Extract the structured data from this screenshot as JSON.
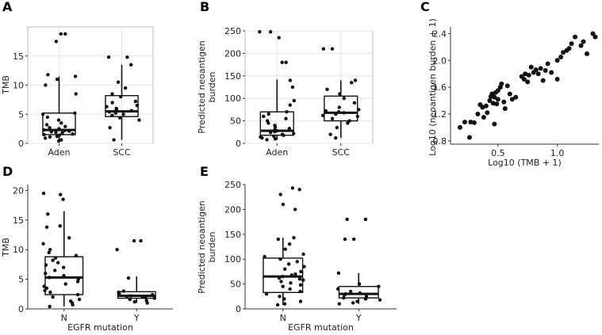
{
  "chart_data": [
    {
      "panel": "A",
      "type": "box",
      "categories": [
        "Aden",
        "SCC"
      ],
      "ylabel": "TMB",
      "xlabel": "",
      "ylim": [
        0,
        20
      ],
      "yticks": [
        0,
        5,
        10,
        15
      ],
      "grid": true,
      "boxes": [
        {
          "q1": 1.5,
          "median": 2.3,
          "q3": 5.2,
          "whisker_low": 0.2,
          "whisker_high": 11.5
        },
        {
          "q1": 4.6,
          "median": 5.5,
          "q3": 8.2,
          "whisker_low": 0.6,
          "whisker_high": 13.5
        }
      ],
      "points": [
        [
          0.4,
          0.6,
          0.9,
          1.1,
          1.2,
          1.4,
          1.5,
          1.6,
          1.8,
          1.9,
          2.0,
          2.1,
          2.2,
          2.3,
          2.5,
          2.7,
          2.9,
          3.2,
          3.5,
          4.0,
          4.5,
          5.0,
          5.2,
          8.5,
          10.0,
          11.0,
          11.5,
          11.8,
          17.5,
          18.8,
          18.8
        ],
        [
          0.6,
          2.7,
          4.0,
          4.4,
          4.8,
          5.0,
          5.2,
          5.4,
          5.6,
          5.8,
          6.0,
          6.3,
          6.5,
          7.0,
          7.2,
          8.0,
          8.5,
          9.5,
          10.5,
          13.5,
          14.8,
          14.8
        ]
      ]
    },
    {
      "panel": "B",
      "type": "box",
      "categories": [
        "Aden",
        "SCC"
      ],
      "ylabel": "Predicted neoantigen burden",
      "ylabel_lines": [
        "Predicted neoantigen",
        "burden"
      ],
      "xlabel": "",
      "ylim": [
        0,
        250
      ],
      "yticks": [
        0,
        50,
        100,
        150,
        200,
        250
      ],
      "grid": true,
      "boxes": [
        {
          "q1": 18,
          "median": 28,
          "q3": 70,
          "whisker_low": 8,
          "whisker_high": 142
        },
        {
          "q1": 50,
          "median": 68,
          "q3": 105,
          "whisker_low": 12,
          "whisker_high": 140
        }
      ],
      "points": [
        [
          8,
          10,
          12,
          14,
          16,
          18,
          20,
          22,
          24,
          26,
          28,
          30,
          33,
          36,
          40,
          45,
          50,
          55,
          60,
          65,
          70,
          85,
          95,
          125,
          140,
          180,
          180,
          235,
          248,
          248
        ],
        [
          12,
          20,
          35,
          45,
          50,
          55,
          60,
          62,
          65,
          68,
          70,
          72,
          75,
          80,
          90,
          100,
          110,
          120,
          135,
          140,
          210,
          210
        ]
      ]
    },
    {
      "panel": "C",
      "type": "scatter",
      "xlabel": "Log10 (TMB + 1)",
      "ylabel": "Log10 (neoantigen burden + 1)",
      "xlim": [
        0.1,
        1.35
      ],
      "ylim": [
        0.75,
        2.5
      ],
      "xticks": [
        0.5,
        1.0
      ],
      "yticks": [
        0.8,
        1.2,
        1.6,
        2.0,
        2.4
      ],
      "x": [
        0.18,
        0.22,
        0.26,
        0.3,
        0.33,
        0.35,
        0.37,
        0.38,
        0.4,
        0.41,
        0.43,
        0.44,
        0.45,
        0.46,
        0.47,
        0.48,
        0.49,
        0.5,
        0.5,
        0.52,
        0.53,
        0.55,
        0.58,
        0.6,
        0.62,
        0.65,
        0.7,
        0.72,
        0.73,
        0.75,
        0.76,
        0.78,
        0.8,
        0.82,
        0.84,
        0.86,
        0.88,
        0.9,
        0.92,
        0.95,
        1.0,
        1.0,
        1.03,
        1.05,
        1.08,
        1.1,
        1.12,
        1.15,
        1.2,
        1.22,
        1.25,
        1.3,
        1.32,
        0.27,
        0.47,
        0.56
      ],
      "y": [
        1.0,
        1.08,
        0.85,
        1.07,
        1.2,
        1.34,
        1.3,
        1.15,
        1.32,
        1.22,
        1.4,
        1.46,
        1.5,
        1.36,
        1.45,
        1.52,
        1.35,
        1.55,
        1.42,
        1.6,
        1.65,
        1.38,
        1.62,
        1.5,
        1.42,
        1.45,
        1.76,
        1.72,
        1.8,
        1.68,
        1.78,
        1.9,
        1.82,
        1.86,
        1.8,
        1.88,
        1.7,
        1.85,
        1.95,
        1.82,
        2.0,
        1.72,
        2.05,
        2.12,
        2.15,
        2.18,
        2.25,
        2.35,
        2.22,
        2.28,
        2.1,
        2.4,
        2.35,
        1.08,
        1.05,
        1.28
      ]
    },
    {
      "panel": "D",
      "type": "box",
      "categories": [
        "N",
        "Y"
      ],
      "xlabel": "EGFR mutation",
      "ylabel": "TMB",
      "ylim": [
        0,
        21
      ],
      "yticks": [
        0,
        5,
        10,
        15,
        20
      ],
      "grid": false,
      "boxes": [
        {
          "q1": 2.4,
          "median": 5.3,
          "q3": 8.8,
          "whisker_low": 0.4,
          "whisker_high": 16.5
        },
        {
          "q1": 1.8,
          "median": 2.2,
          "q3": 2.9,
          "whisker_low": 1.0,
          "whisker_high": 5.5
        }
      ],
      "points": [
        [
          0.4,
          0.7,
          1.0,
          1.3,
          1.6,
          2.0,
          2.4,
          2.8,
          3.1,
          3.5,
          3.8,
          4.2,
          4.6,
          5.0,
          5.3,
          5.6,
          6.0,
          6.5,
          7.0,
          7.4,
          7.8,
          8.2,
          8.6,
          9.0,
          9.5,
          10.0,
          11.0,
          12.0,
          13.8,
          14.0,
          16.0,
          18.5,
          19.3,
          19.5
        ],
        [
          1.0,
          1.2,
          1.4,
          1.6,
          1.8,
          1.9,
          2.0,
          2.1,
          2.2,
          2.3,
          2.4,
          2.6,
          2.8,
          3.0,
          5.2,
          10.0,
          11.5,
          11.5
        ]
      ]
    },
    {
      "panel": "E",
      "type": "box",
      "categories": [
        "N",
        "Y"
      ],
      "xlabel": "EGFR mutation",
      "ylabel": "Predicted neoantigen burden",
      "ylabel_lines": [
        "Predicted neoantigen",
        "burden"
      ],
      "ylim": [
        0,
        250
      ],
      "yticks": [
        0,
        50,
        100,
        150,
        200,
        250
      ],
      "grid": false,
      "boxes": [
        {
          "q1": 33,
          "median": 65,
          "q3": 102,
          "whisker_low": 8,
          "whisker_high": 143
        },
        {
          "q1": 22,
          "median": 30,
          "q3": 45,
          "whisker_low": 10,
          "whisker_high": 72
        }
      ],
      "points": [
        [
          8,
          10,
          15,
          20,
          25,
          30,
          35,
          40,
          45,
          48,
          52,
          55,
          58,
          60,
          62,
          65,
          68,
          70,
          75,
          80,
          85,
          90,
          95,
          100,
          105,
          110,
          120,
          130,
          140,
          143,
          200,
          210,
          230,
          240,
          243
        ],
        [
          10,
          12,
          15,
          18,
          20,
          22,
          25,
          28,
          30,
          32,
          35,
          40,
          45,
          50,
          72,
          140,
          140,
          180,
          180
        ]
      ]
    }
  ]
}
